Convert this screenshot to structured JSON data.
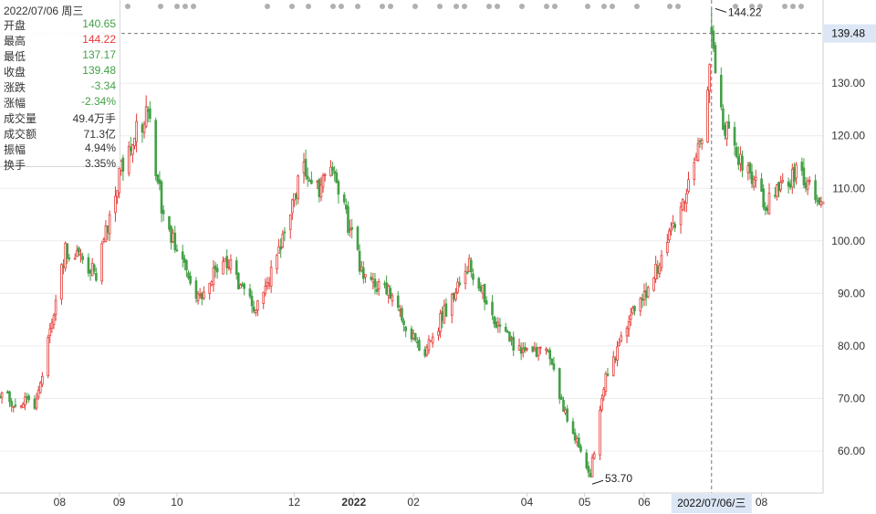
{
  "colors": {
    "up": "#e53935",
    "down": "#43a047",
    "grid": "#ececec",
    "crosshair": "#777777",
    "event_dot": "#b0b0b0",
    "tag_bg": "#dce6f5"
  },
  "info_panel": {
    "date": "2022/07/06 周三",
    "rows": [
      {
        "label": "开盘",
        "value": "140.65",
        "tone": "down"
      },
      {
        "label": "最高",
        "value": "144.22",
        "tone": "up"
      },
      {
        "label": "最低",
        "value": "137.17",
        "tone": "down"
      },
      {
        "label": "收盘",
        "value": "139.48",
        "tone": "down"
      },
      {
        "label": "涨跌",
        "value": "-3.34",
        "tone": "down"
      },
      {
        "label": "涨幅",
        "value": "-2.34%",
        "tone": "down"
      },
      {
        "label": "成交量",
        "value": "49.4万手",
        "tone": "neutral"
      },
      {
        "label": "成交额",
        "value": "71.3亿",
        "tone": "neutral"
      },
      {
        "label": "振幅",
        "value": "4.94%",
        "tone": "neutral"
      },
      {
        "label": "换手",
        "value": "3.35%",
        "tone": "neutral"
      }
    ]
  },
  "chart_data": {
    "type": "candlestick",
    "title": "",
    "xlabel": "",
    "ylabel": "",
    "ylim": [
      52,
      145.5
    ],
    "y_ticks": [
      "60.00",
      "70.00",
      "80.00",
      "90.00",
      "100.00",
      "110.00",
      "120.00",
      "130.00"
    ],
    "x_ticks": [
      "08",
      "09",
      "10",
      "12",
      "2022",
      "02",
      "04",
      "05",
      "06",
      "08"
    ],
    "x_range": [
      "2021-07-01",
      "2022-09-02"
    ],
    "grid": true,
    "anchors": [
      {
        "date": "2021-07-01",
        "price": 70
      },
      {
        "date": "2021-07-20",
        "price": 69
      },
      {
        "date": "2021-08-04",
        "price": 98
      },
      {
        "date": "2021-08-20",
        "price": 94
      },
      {
        "date": "2021-09-05",
        "price": 118
      },
      {
        "date": "2021-09-16",
        "price": 124
      },
      {
        "date": "2021-09-24",
        "price": 104
      },
      {
        "date": "2021-10-12",
        "price": 89
      },
      {
        "date": "2021-10-26",
        "price": 97
      },
      {
        "date": "2021-11-11",
        "price": 86
      },
      {
        "date": "2021-11-28",
        "price": 104
      },
      {
        "date": "2021-12-06",
        "price": 115
      },
      {
        "date": "2021-12-14",
        "price": 109
      },
      {
        "date": "2021-12-20",
        "price": 115
      },
      {
        "date": "2022-01-06",
        "price": 93
      },
      {
        "date": "2022-01-18",
        "price": 91
      },
      {
        "date": "2022-02-06",
        "price": 78
      },
      {
        "date": "2022-02-22",
        "price": 90
      },
      {
        "date": "2022-03-02",
        "price": 96
      },
      {
        "date": "2022-03-16",
        "price": 84
      },
      {
        "date": "2022-03-28",
        "price": 79
      },
      {
        "date": "2022-04-12",
        "price": 79
      },
      {
        "date": "2022-04-18",
        "price": 70
      },
      {
        "date": "2022-04-28",
        "price": 61
      },
      {
        "date": "2022-05-04",
        "price": 56
      },
      {
        "date": "2022-05-12",
        "price": 74
      },
      {
        "date": "2022-05-25",
        "price": 86
      },
      {
        "date": "2022-06-06",
        "price": 93
      },
      {
        "date": "2022-06-22",
        "price": 108
      },
      {
        "date": "2022-07-03",
        "price": 122
      },
      {
        "date": "2022-07-06",
        "price": 139.48
      },
      {
        "date": "2022-07-12",
        "price": 122
      },
      {
        "date": "2022-07-22",
        "price": 115
      },
      {
        "date": "2022-08-04",
        "price": 107
      },
      {
        "date": "2022-08-20",
        "price": 113
      },
      {
        "date": "2022-09-02",
        "price": 106
      }
    ],
    "annotations": {
      "max": {
        "date": "2022-07-07",
        "value": 144.22,
        "label": "144.22"
      },
      "min": {
        "date": "2022-05-04",
        "value": 53.7,
        "label": "53.70"
      }
    },
    "crosshair": {
      "date": "2022-07-06",
      "price": 139.48,
      "price_label": "139.48",
      "date_label": "2022/07/06/三"
    }
  }
}
